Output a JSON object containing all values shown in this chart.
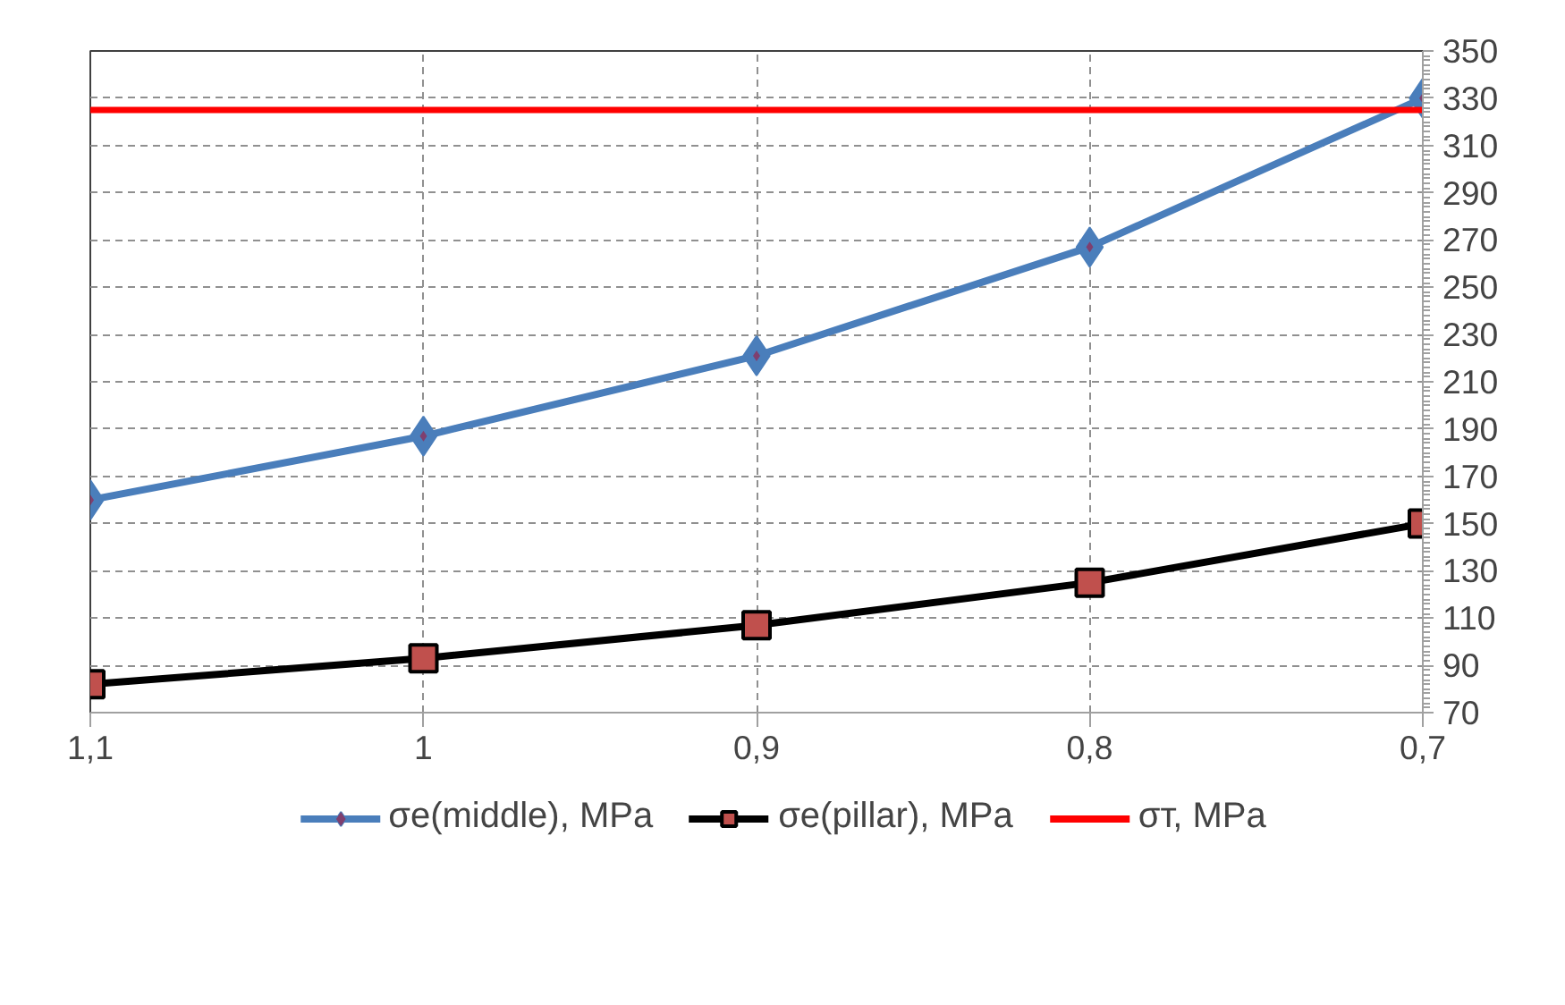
{
  "chart_data": {
    "type": "line",
    "categories": [
      "1,1",
      "1",
      "0,9",
      "0,8",
      "0,7"
    ],
    "ylim": [
      70,
      350
    ],
    "yticks": [
      70,
      90,
      110,
      130,
      150,
      170,
      190,
      210,
      230,
      250,
      270,
      290,
      310,
      330,
      350
    ],
    "grid": true,
    "legend": "bottom",
    "line_style": "solid",
    "series": [
      {
        "name": "σe(middle), MPa",
        "color": "#4a7ebb",
        "marker": "diamond",
        "values": [
          160,
          187,
          221,
          267,
          330
        ]
      },
      {
        "name": "σe(pillar), MPa",
        "color": "#000000",
        "marker": "square",
        "values": [
          82,
          93,
          107,
          125,
          150
        ]
      },
      {
        "name": "σт, MPa",
        "color": "#ff0000",
        "marker": "none",
        "values": [
          325,
          325,
          325,
          325,
          325
        ]
      }
    ]
  }
}
